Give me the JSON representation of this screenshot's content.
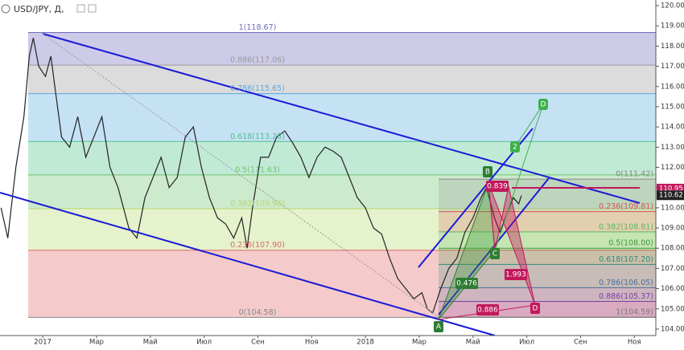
{
  "chart_data": {
    "type": "line",
    "title": "USD/JPY, Д,",
    "xlim": [
      -1.59,
      22.8
    ],
    "ylim": [
      103.68,
      120.28
    ],
    "xticks": [
      {
        "value": 0,
        "label": "2017"
      },
      {
        "value": 2,
        "label": "Мар"
      },
      {
        "value": 4,
        "label": "Май"
      },
      {
        "value": 6,
        "label": "Июл"
      },
      {
        "value": 8,
        "label": "Сен"
      },
      {
        "value": 10,
        "label": "Ноя"
      },
      {
        "value": 12,
        "label": "2018"
      },
      {
        "value": 14,
        "label": "Мар"
      },
      {
        "value": 16,
        "label": "Май"
      },
      {
        "value": 18,
        "label": "Июл"
      },
      {
        "value": 20,
        "label": "Сен"
      },
      {
        "value": 22,
        "label": "Ноя"
      }
    ],
    "yticks": [
      {
        "value": 104,
        "label": "104.00"
      },
      {
        "value": 105,
        "label": "105.00"
      },
      {
        "value": 106,
        "label": "106.00"
      },
      {
        "value": 107,
        "label": "107.00"
      },
      {
        "value": 108,
        "label": "108.00"
      },
      {
        "value": 109,
        "label": "109.00"
      },
      {
        "value": 110,
        "label": "110.00"
      },
      {
        "value": 111,
        "label": "111.00"
      },
      {
        "value": 112,
        "label": "112.00"
      },
      {
        "value": 113,
        "label": "113.00"
      },
      {
        "value": 114,
        "label": "114.00"
      },
      {
        "value": 115,
        "label": "115.00"
      },
      {
        "value": 116,
        "label": "116.00"
      },
      {
        "value": 117,
        "label": "117.00"
      },
      {
        "value": 118,
        "label": "118.00"
      },
      {
        "value": 119,
        "label": "119.00"
      },
      {
        "value": 120,
        "label": "120.00"
      }
    ],
    "series": [
      {
        "color": "#222222",
        "x": [
          -1.55,
          -1.3,
          -1.0,
          -0.7,
          -0.5,
          -0.35,
          -0.15,
          0.1,
          0.3,
          0.5,
          0.7,
          1.0,
          1.3,
          1.6,
          1.9,
          2.2,
          2.5,
          2.8,
          3.2,
          3.5,
          3.8,
          4.1,
          4.4,
          4.7,
          5.0,
          5.3,
          5.6,
          5.9,
          6.2,
          6.5,
          6.8,
          7.1,
          7.4,
          7.6,
          7.8,
          8.1,
          8.4,
          8.7,
          9.0,
          9.3,
          9.6,
          9.9,
          10.2,
          10.5,
          10.8,
          11.1,
          11.4,
          11.7,
          12.0,
          12.3,
          12.6,
          12.9,
          13.2,
          13.5,
          13.8,
          14.1,
          14.3,
          14.5,
          14.8,
          15.1,
          15.4,
          15.7,
          16.0,
          16.3,
          16.5,
          16.8,
          17.0,
          17.2,
          17.5,
          17.7,
          17.8
        ],
        "values": [
          110.0,
          108.5,
          112,
          114.5,
          117.5,
          118.4,
          117.0,
          116.5,
          117.5,
          115.5,
          113.5,
          113,
          114.5,
          112.5,
          113.5,
          114.5,
          112,
          111,
          109,
          108.5,
          110.5,
          111.5,
          112.5,
          111,
          111.5,
          113.5,
          114,
          112,
          110.5,
          109.5,
          109.2,
          108.5,
          109.5,
          108,
          110,
          112.5,
          112.5,
          113.5,
          113.8,
          113.2,
          112.5,
          111.5,
          112.5,
          113,
          112.8,
          112.5,
          111.5,
          110.5,
          110,
          109,
          108.7,
          107.5,
          106.5,
          106,
          105.5,
          105.8,
          105,
          104.8,
          106,
          107,
          107.5,
          108.8,
          109.5,
          110.5,
          111,
          109.5,
          108.8,
          109.5,
          110.5,
          110.2,
          110.6
        ]
      }
    ],
    "fib_left": [
      {
        "label": "1(118.67)",
        "value": 118.67,
        "color": "#6f6bbd"
      },
      {
        "label": "0.886(117.06)",
        "value": 117.06,
        "color": "#9a9a9a"
      },
      {
        "label": "0.786(115.65)",
        "value": 115.65,
        "color": "#5aa9e0"
      },
      {
        "label": "0.618(113.28)",
        "value": 113.28,
        "color": "#4cc38a"
      },
      {
        "label": "0.5(111.63)",
        "value": 111.63,
        "color": "#6cc46c"
      },
      {
        "label": "0.382(109.96)",
        "value": 109.96,
        "color": "#b5d96e"
      },
      {
        "label": "0.236(107.90)",
        "value": 107.9,
        "color": "#e06666"
      },
      {
        "label": "0(104.58)",
        "value": 104.58,
        "color": "#888888"
      }
    ],
    "fib_right": [
      {
        "label": "0(111.42)",
        "value": 111.42,
        "color": "#888888"
      },
      {
        "label": "0.236(109.81)",
        "value": 109.81,
        "color": "#d9534f"
      },
      {
        "label": "0.382(108.81)",
        "value": 108.81,
        "color": "#5cb85c"
      },
      {
        "label": "0.5(108.00)",
        "value": 108.0,
        "color": "#3d9b3d"
      },
      {
        "label": "0.618(107.20)",
        "value": 107.2,
        "color": "#2e8b7a"
      },
      {
        "label": "0.786(106.05)",
        "value": 106.05,
        "color": "#4a6f9a"
      },
      {
        "label": "0.886(105.37)",
        "value": 105.37,
        "color": "#7a3fa0"
      },
      {
        "label": "1(104.59)",
        "value": 104.59,
        "color": "#777777"
      }
    ],
    "price_tags": [
      {
        "label": "110.95",
        "value": 110.95,
        "color": "#c2185b"
      },
      {
        "label": "110.62",
        "value": 110.62,
        "color": "#222222"
      }
    ],
    "pattern_labels": [
      "A",
      "B",
      "C",
      "D",
      "0.476",
      "0.839",
      "1.993",
      "0.886"
    ],
    "projection_labels": [
      "2",
      "D"
    ]
  }
}
